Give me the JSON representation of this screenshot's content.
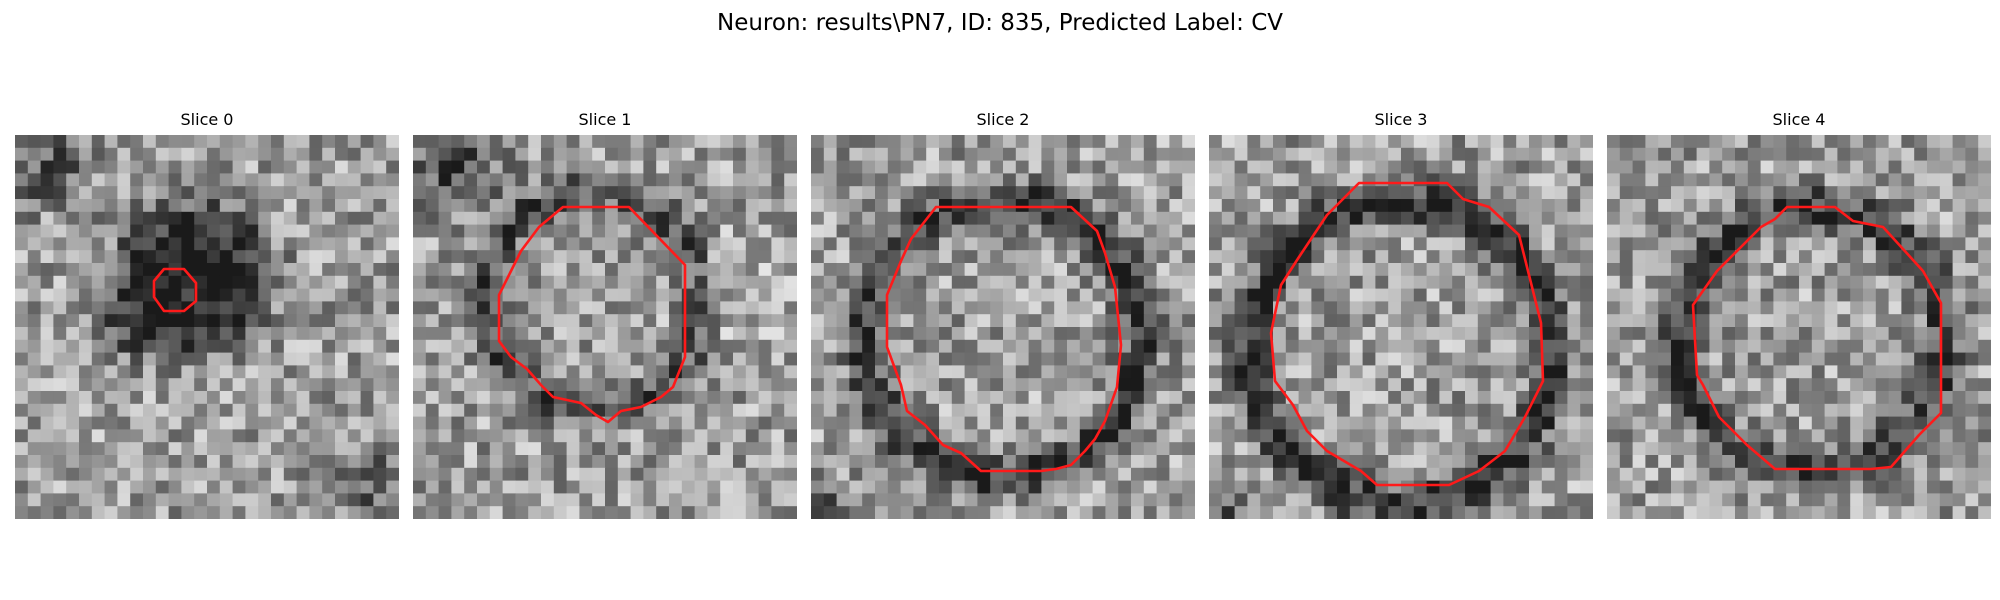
{
  "figure": {
    "title": "Neuron: results\\PN7, ID: 835, Predicted Label: CV"
  },
  "colors": {
    "contour": "#ff1a1a",
    "image_dark": "#1e1e1e",
    "image_light": "#f0f0f0"
  },
  "panels": [
    {
      "title": "Slice 0"
    },
    {
      "title": "Slice 1"
    },
    {
      "title": "Slice 2"
    },
    {
      "title": "Slice 3"
    },
    {
      "title": "Slice 4"
    }
  ]
}
